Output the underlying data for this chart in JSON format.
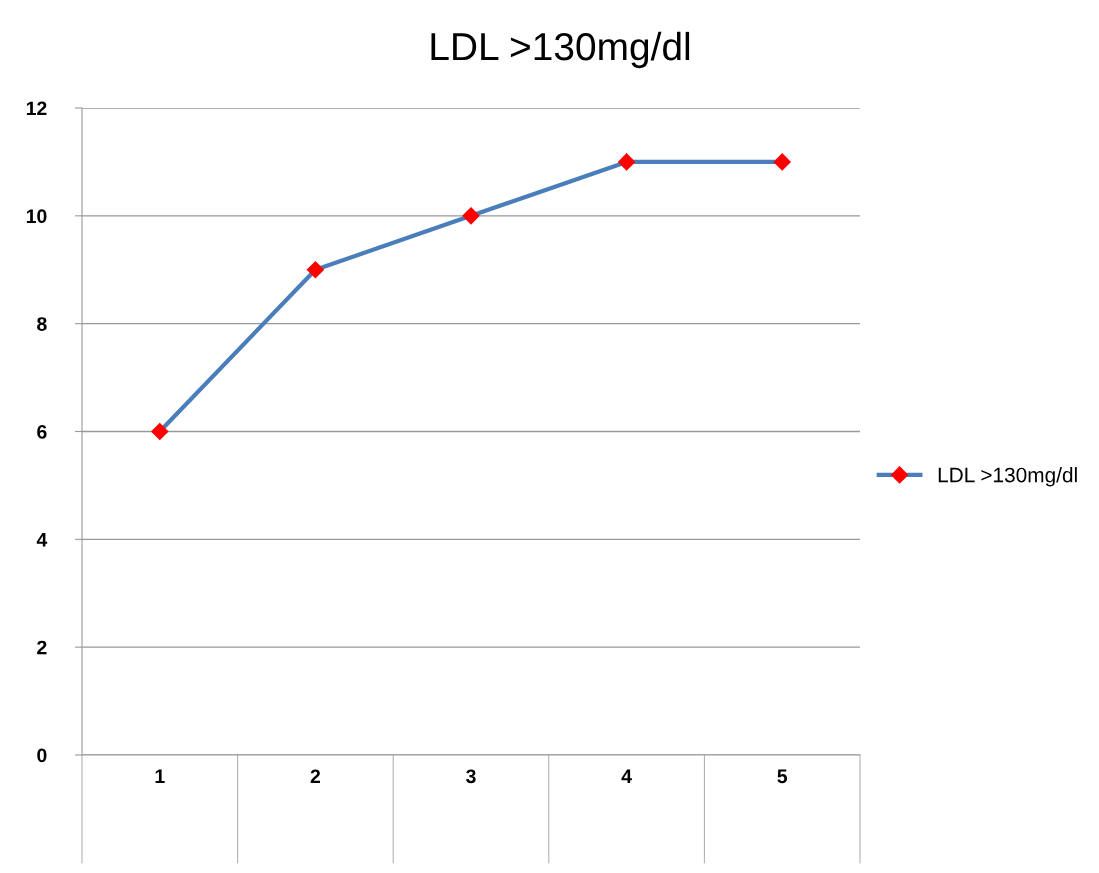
{
  "chart_data": {
    "type": "line",
    "title": "LDL >130mg/dl",
    "categories": [
      "1",
      "2",
      "3",
      "4",
      "5"
    ],
    "series": [
      {
        "name": "LDL >130mg/dl",
        "color": "#4a7ebb",
        "values": [
          6,
          9,
          10,
          11,
          11
        ]
      }
    ],
    "ylim": [
      0,
      12
    ],
    "yticks": [
      0,
      2,
      4,
      6,
      8,
      10,
      12
    ],
    "grid": "y",
    "legend": "right",
    "marker": "diamond",
    "line_style": "solid"
  }
}
